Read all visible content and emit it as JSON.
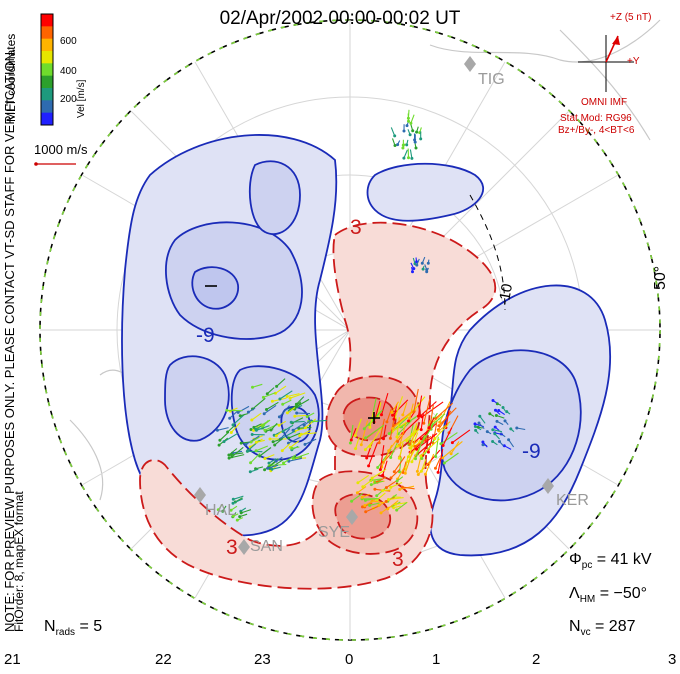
{
  "title": "02/Apr/2002 00:00-00:02 UT",
  "coordinate_system": "MLT coordinates",
  "colorbar": {
    "label": "Vel [m/s]",
    "ticks": [
      "600",
      "400",
      "200"
    ],
    "colors": [
      "#ff0000",
      "#ff6400",
      "#ffb400",
      "#e6e600",
      "#6fdc2c",
      "#2ca02c",
      "#1e9a7d",
      "#2e6bb0",
      "#2020ff"
    ]
  },
  "scale_vector": {
    "label": "1000 m/s",
    "color": "#cc0000"
  },
  "imf": {
    "axis_z": "+Z (5 nT)",
    "axis_y": "+Y",
    "label": "OMNI IMF",
    "stat_model": "Stat Mod: RG96",
    "condition": "Bz+/By-, 4<BT<6",
    "color": "#dd0000"
  },
  "notice": "NOTE: FOR PREVIEW PURPOSES ONLY. PLEASE CONTACT VT-SD STAFF FOR VERIFICATION.",
  "fit_info": "FitOrder: 8, mapEX format",
  "stats": {
    "phi_pc": "Φ",
    "phi_pc_sub": "pc",
    "phi_pc_value": "= 41 kV",
    "lambda_hm": "Λ",
    "lambda_hm_sub": "HM",
    "lambda_hm_value": "= −50°",
    "n_vc": "N",
    "n_vc_sub": "vc",
    "n_vc_value": "= 287",
    "n_rads": "N",
    "n_rads_sub": "rads",
    "n_rads_value": "= 5"
  },
  "mlt_labels": [
    "21",
    "22",
    "23",
    "0",
    "1",
    "2",
    "3"
  ],
  "latitude_label": "50°",
  "contour_labels": {
    "neg_min": "−",
    "pos_max": "+",
    "neg_9_left": "-9",
    "neg_9_right": "-9",
    "pos_3_top": "3",
    "pos_3_left": "3",
    "pos_3_bottom": "3",
    "dashed_10": "-10"
  },
  "radar_sites": [
    "TIG",
    "KER",
    "HAL",
    "SAN",
    "SYE"
  ],
  "contour_colors": {
    "negative": "#1a2bb8",
    "positive": "#cc1a1a",
    "negative_fill": "#dfe2f5",
    "positive_fill": "#f8dcd7"
  }
}
